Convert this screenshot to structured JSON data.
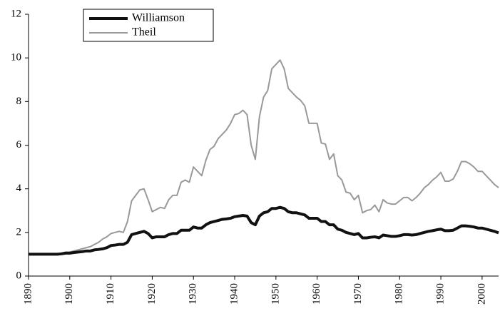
{
  "chart_data": {
    "type": "line",
    "x": [
      1890,
      1891,
      1892,
      1893,
      1894,
      1895,
      1896,
      1897,
      1898,
      1899,
      1900,
      1901,
      1902,
      1903,
      1904,
      1905,
      1906,
      1907,
      1908,
      1909,
      1910,
      1911,
      1912,
      1913,
      1914,
      1915,
      1916,
      1917,
      1918,
      1919,
      1920,
      1921,
      1922,
      1923,
      1924,
      1925,
      1926,
      1927,
      1928,
      1929,
      1930,
      1931,
      1932,
      1933,
      1934,
      1935,
      1936,
      1937,
      1938,
      1939,
      1940,
      1941,
      1942,
      1943,
      1944,
      1945,
      1946,
      1947,
      1948,
      1949,
      1950,
      1951,
      1952,
      1953,
      1954,
      1955,
      1956,
      1957,
      1958,
      1959,
      1960,
      1961,
      1962,
      1963,
      1964,
      1965,
      1966,
      1967,
      1968,
      1969,
      1970,
      1971,
      1972,
      1973,
      1974,
      1975,
      1976,
      1977,
      1978,
      1979,
      1980,
      1981,
      1982,
      1983,
      1984,
      1985,
      1986,
      1987,
      1988,
      1989,
      1990,
      1991,
      1992,
      1993,
      1994,
      1995,
      1996,
      1997,
      1998,
      1999,
      2000,
      2001,
      2002,
      2003,
      2004
    ],
    "series": [
      {
        "name": "Williamson",
        "color": "#111111",
        "width": 4,
        "values": [
          1.0,
          1.0,
          1.0,
          1.0,
          1.0,
          1.0,
          1.0,
          1.0,
          1.02,
          1.05,
          1.05,
          1.08,
          1.1,
          1.12,
          1.15,
          1.15,
          1.2,
          1.22,
          1.25,
          1.3,
          1.4,
          1.42,
          1.45,
          1.45,
          1.55,
          1.9,
          1.95,
          2.0,
          2.05,
          1.95,
          1.75,
          1.8,
          1.8,
          1.8,
          1.9,
          1.95,
          1.95,
          2.1,
          2.1,
          2.1,
          2.25,
          2.2,
          2.2,
          2.35,
          2.45,
          2.5,
          2.55,
          2.6,
          2.62,
          2.65,
          2.72,
          2.75,
          2.78,
          2.75,
          2.45,
          2.35,
          2.75,
          2.9,
          2.95,
          3.1,
          3.1,
          3.15,
          3.1,
          2.95,
          2.9,
          2.9,
          2.85,
          2.8,
          2.65,
          2.65,
          2.65,
          2.5,
          2.5,
          2.35,
          2.35,
          2.15,
          2.1,
          2.0,
          1.95,
          1.9,
          1.95,
          1.75,
          1.75,
          1.78,
          1.8,
          1.75,
          1.88,
          1.85,
          1.82,
          1.82,
          1.85,
          1.9,
          1.9,
          1.88,
          1.9,
          1.95,
          2.0,
          2.05,
          2.08,
          2.12,
          2.15,
          2.08,
          2.08,
          2.1,
          2.2,
          2.3,
          2.3,
          2.28,
          2.25,
          2.2,
          2.2,
          2.15,
          2.1,
          2.05,
          1.98
        ]
      },
      {
        "name": "Theil",
        "color": "#999999",
        "width": 2,
        "values": [
          1.0,
          1.0,
          1.0,
          1.0,
          1.0,
          1.0,
          1.0,
          1.0,
          1.05,
          1.1,
          1.1,
          1.15,
          1.2,
          1.25,
          1.3,
          1.35,
          1.45,
          1.55,
          1.7,
          1.8,
          1.95,
          2.0,
          2.05,
          2.0,
          2.5,
          3.45,
          3.7,
          3.95,
          4.0,
          3.5,
          2.95,
          3.05,
          3.15,
          3.1,
          3.5,
          3.7,
          3.7,
          4.3,
          4.4,
          4.3,
          5.0,
          4.8,
          4.6,
          5.3,
          5.8,
          5.95,
          6.3,
          6.5,
          6.7,
          7.0,
          7.4,
          7.45,
          7.6,
          7.4,
          6.0,
          5.35,
          7.3,
          8.2,
          8.5,
          9.5,
          9.7,
          9.9,
          9.5,
          8.6,
          8.4,
          8.2,
          8.05,
          7.8,
          7.0,
          7.0,
          7.0,
          6.1,
          6.05,
          5.35,
          5.6,
          4.6,
          4.4,
          3.85,
          3.8,
          3.5,
          3.7,
          2.9,
          3.0,
          3.05,
          3.25,
          2.95,
          3.5,
          3.35,
          3.3,
          3.3,
          3.45,
          3.6,
          3.6,
          3.45,
          3.6,
          3.8,
          4.05,
          4.2,
          4.4,
          4.55,
          4.75,
          4.35,
          4.35,
          4.45,
          4.8,
          5.25,
          5.25,
          5.15,
          5.0,
          4.8,
          4.8,
          4.6,
          4.4,
          4.2,
          4.05
        ]
      }
    ],
    "xlim": [
      1890,
      2004
    ],
    "xticks": [
      1890,
      1900,
      1910,
      1920,
      1930,
      1940,
      1950,
      1960,
      1970,
      1980,
      1990,
      2000
    ],
    "ylim": [
      0,
      12
    ],
    "yticks": [
      0,
      2,
      4,
      6,
      8,
      10,
      12
    ],
    "grid": false,
    "legend": "top-left"
  }
}
